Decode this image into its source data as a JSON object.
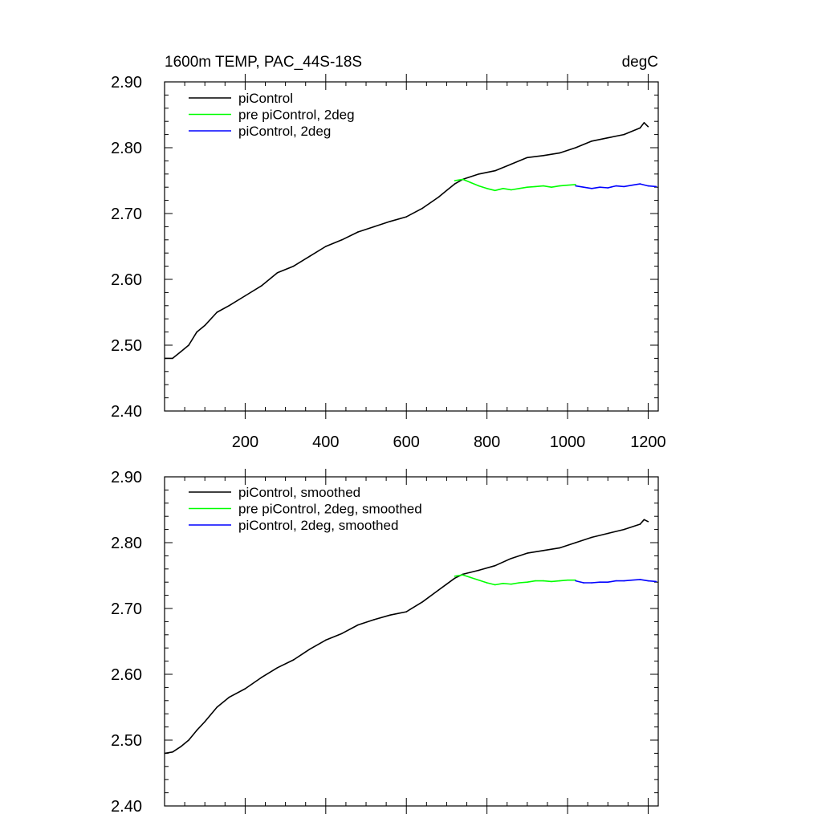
{
  "chart_data": [
    {
      "type": "line",
      "title_left": "1600m TEMP, PAC_44S-18S",
      "title_right": "degC",
      "xlim": [
        0,
        1225
      ],
      "ylim": [
        2.4,
        2.9
      ],
      "x_ticks": [
        200,
        400,
        600,
        800,
        1000,
        1200
      ],
      "x_tick_labels": [
        "200",
        "400",
        "600",
        "800",
        "1000",
        "1200"
      ],
      "y_ticks": [
        2.4,
        2.5,
        2.6,
        2.7,
        2.8,
        2.9
      ],
      "y_tick_labels": [
        "2.40",
        "2.50",
        "2.60",
        "2.70",
        "2.80",
        "2.90"
      ],
      "legend_position": "top-left",
      "series": [
        {
          "name": "piControl",
          "color": "#000000",
          "x": [
            1,
            20,
            40,
            60,
            80,
            100,
            130,
            160,
            200,
            240,
            280,
            320,
            360,
            400,
            440,
            480,
            520,
            560,
            600,
            640,
            680,
            700,
            720,
            740,
            780,
            820,
            860,
            900,
            940,
            980,
            1020,
            1060,
            1100,
            1140,
            1180,
            1190,
            1200
          ],
          "y": [
            2.48,
            2.48,
            2.49,
            2.5,
            2.52,
            2.53,
            2.55,
            2.56,
            2.575,
            2.59,
            2.61,
            2.62,
            2.635,
            2.65,
            2.66,
            2.672,
            2.68,
            2.688,
            2.695,
            2.708,
            2.725,
            2.735,
            2.745,
            2.752,
            2.76,
            2.765,
            2.775,
            2.785,
            2.788,
            2.792,
            2.8,
            2.81,
            2.815,
            2.82,
            2.83,
            2.838,
            2.832
          ]
        },
        {
          "name": "pre piControl, 2deg",
          "color": "#00ff00",
          "x": [
            720,
            740,
            760,
            780,
            800,
            820,
            840,
            860,
            880,
            900,
            920,
            940,
            960,
            980,
            1000,
            1020
          ],
          "y": [
            2.75,
            2.752,
            2.747,
            2.742,
            2.738,
            2.735,
            2.738,
            2.736,
            2.738,
            2.74,
            2.741,
            2.742,
            2.74,
            2.742,
            2.743,
            2.744
          ]
        },
        {
          "name": "piControl, 2deg",
          "color": "#0000ff",
          "x": [
            1020,
            1040,
            1060,
            1080,
            1100,
            1120,
            1140,
            1160,
            1180,
            1200,
            1220
          ],
          "y": [
            2.742,
            2.74,
            2.738,
            2.74,
            2.739,
            2.742,
            2.741,
            2.743,
            2.745,
            2.742,
            2.741
          ]
        }
      ]
    },
    {
      "type": "line",
      "xlim": [
        0,
        1225
      ],
      "ylim": [
        2.4,
        2.9
      ],
      "x_ticks": [
        200,
        400,
        600,
        800,
        1000,
        1200
      ],
      "y_ticks": [
        2.4,
        2.5,
        2.6,
        2.7,
        2.8,
        2.9
      ],
      "y_tick_labels": [
        "2.40",
        "2.50",
        "2.60",
        "2.70",
        "2.80",
        "2.90"
      ],
      "legend_position": "top-left",
      "series": [
        {
          "name": "piControl, smoothed",
          "color": "#000000",
          "x": [
            1,
            20,
            40,
            60,
            80,
            100,
            130,
            160,
            200,
            240,
            280,
            320,
            360,
            400,
            440,
            480,
            520,
            560,
            600,
            640,
            680,
            700,
            720,
            740,
            780,
            820,
            860,
            900,
            940,
            980,
            1020,
            1060,
            1100,
            1140,
            1180,
            1190,
            1200
          ],
          "y": [
            2.48,
            2.482,
            2.49,
            2.5,
            2.515,
            2.528,
            2.55,
            2.565,
            2.578,
            2.595,
            2.61,
            2.622,
            2.638,
            2.652,
            2.662,
            2.675,
            2.683,
            2.69,
            2.695,
            2.71,
            2.728,
            2.737,
            2.746,
            2.752,
            2.758,
            2.765,
            2.776,
            2.784,
            2.788,
            2.792,
            2.8,
            2.808,
            2.814,
            2.82,
            2.828,
            2.835,
            2.832
          ]
        },
        {
          "name": "pre piControl, 2deg, smoothed",
          "color": "#00ff00",
          "x": [
            720,
            740,
            760,
            780,
            800,
            820,
            840,
            860,
            880,
            900,
            920,
            940,
            960,
            980,
            1000,
            1020
          ],
          "y": [
            2.749,
            2.751,
            2.747,
            2.743,
            2.739,
            2.736,
            2.738,
            2.737,
            2.739,
            2.74,
            2.742,
            2.742,
            2.741,
            2.742,
            2.743,
            2.743
          ]
        },
        {
          "name": "piControl, 2deg, smoothed",
          "color": "#0000ff",
          "x": [
            1020,
            1040,
            1060,
            1080,
            1100,
            1120,
            1140,
            1160,
            1180,
            1200,
            1220
          ],
          "y": [
            2.742,
            2.739,
            2.739,
            2.74,
            2.74,
            2.742,
            2.742,
            2.743,
            2.744,
            2.742,
            2.741
          ]
        }
      ]
    }
  ]
}
